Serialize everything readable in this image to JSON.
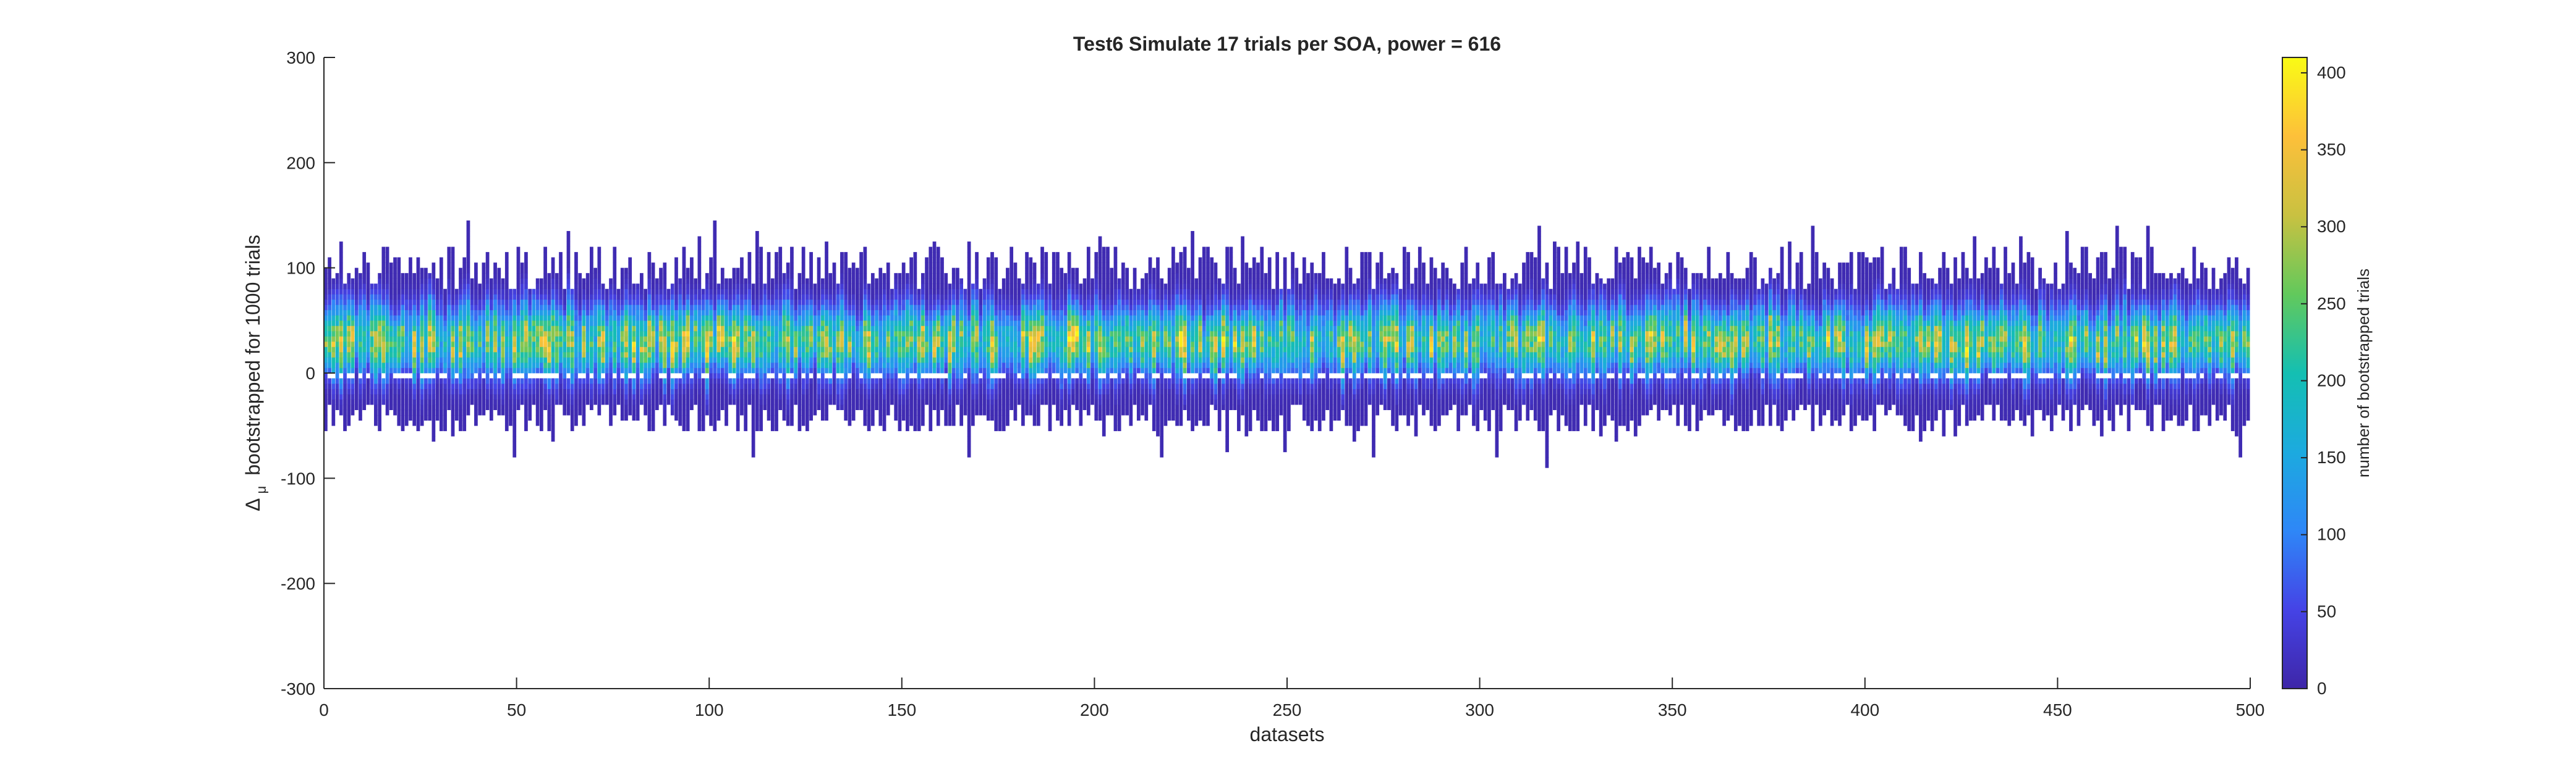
{
  "chart_data": {
    "type": "heatmap",
    "title": "Test6 Simulate 17 trials per SOA, power = 616",
    "xlabel": "datasets",
    "ylabel_symbol": "Δ",
    "ylabel_subscript": "μ",
    "ylabel_text": "bootstrapped for 1000 trials",
    "xlim": [
      0,
      500
    ],
    "ylim": [
      -300,
      300
    ],
    "xticks": [
      0,
      50,
      100,
      150,
      200,
      250,
      300,
      350,
      400,
      450,
      500
    ],
    "yticks": [
      -300,
      -200,
      -100,
      0,
      100,
      200,
      300
    ],
    "n_datasets": 500,
    "typical_range": {
      "low": -30,
      "high": 100,
      "center": 30
    },
    "notable_extremes": [
      {
        "dataset": 5,
        "max": 124
      },
      {
        "dataset": 113,
        "max": 134
      },
      {
        "dataset": 112,
        "min": -77
      },
      {
        "dataset": 50,
        "min": -77
      },
      {
        "dataset": 226,
        "max": 135
      },
      {
        "dataset": 273,
        "min": -77
      },
      {
        "dataset": 318,
        "min": -87
      },
      {
        "dataset": 466,
        "max": 137
      }
    ],
    "colorbar": {
      "label": "number of bootstrapped trials",
      "min": 0,
      "max": 410,
      "ticks": [
        0,
        50,
        100,
        150,
        200,
        250,
        300,
        350,
        400
      ],
      "colormap": "parula"
    },
    "grid": false,
    "legend": "none"
  }
}
